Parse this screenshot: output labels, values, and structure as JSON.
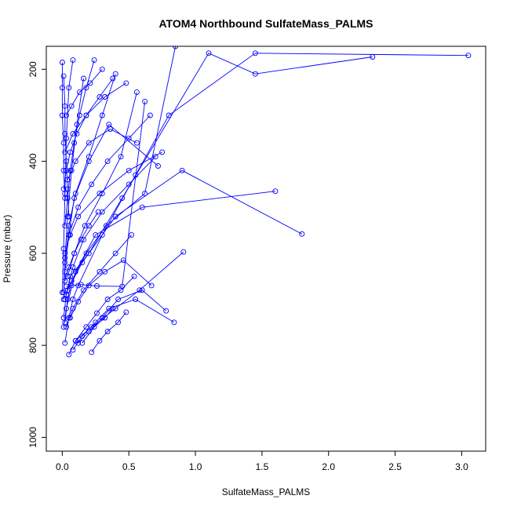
{
  "chart_data": {
    "type": "line",
    "title": "ATOM4 Northbound SulfateMass_PALMS",
    "xlabel": "SulfateMass_PALMS",
    "ylabel": "Pressure (mbar)",
    "xlim": [
      -0.12,
      3.18
    ],
    "ylim": [
      1030,
      150
    ],
    "y_inverted": true,
    "grid": false,
    "x_ticks": [
      "0.0",
      "0.5",
      "1.0",
      "1.5",
      "2.0",
      "2.5",
      "3.0"
    ],
    "x_tick_values": [
      0,
      0.5,
      1.0,
      1.5,
      2.0,
      2.5,
      3.0
    ],
    "y_ticks": [
      "200",
      "400",
      "600",
      "800",
      "1000"
    ],
    "y_tick_values": [
      200,
      400,
      600,
      800,
      1000
    ],
    "series_color": "#0000ff",
    "marker": "open-circle",
    "series": [
      {
        "x": [
          0.02,
          0.05,
          0.08,
          0.12,
          0.3,
          0.55,
          0.8,
          1.45,
          3.05
        ],
        "y": [
          795,
          740,
          700,
          670,
          560,
          430,
          300,
          165,
          170
        ]
      },
      {
        "x": [
          0.01,
          0.03,
          0.1,
          0.25,
          0.6,
          1.6
        ],
        "y": [
          760,
          720,
          640,
          560,
          500,
          465
        ]
      },
      {
        "x": [
          0.02,
          0.04,
          0.15,
          0.4,
          0.9,
          1.8
        ],
        "y": [
          700,
          680,
          620,
          520,
          420,
          558
        ]
      },
      {
        "x": [
          0.03,
          0.06,
          0.2,
          0.45,
          1.1,
          1.45,
          2.33
        ],
        "y": [
          690,
          650,
          600,
          480,
          165,
          210,
          173
        ]
      },
      {
        "x": [
          0.01,
          0.02,
          0.05,
          0.09,
          0.2,
          0.35,
          0.72
        ],
        "y": [
          685,
          640,
          560,
          480,
          400,
          320,
          410
        ]
      },
      {
        "x": [
          0.02,
          0.04,
          0.07,
          0.18,
          0.33,
          0.62,
          0.85
        ],
        "y": [
          750,
          700,
          660,
          600,
          540,
          470,
          150
        ]
      },
      {
        "x": [
          0.05,
          0.1,
          0.22,
          0.4,
          0.58,
          0.91
        ],
        "y": [
          820,
          790,
          760,
          720,
          680,
          597
        ]
      },
      {
        "x": [
          0.08,
          0.15,
          0.25,
          0.35,
          0.55,
          0.84
        ],
        "y": [
          810,
          780,
          750,
          720,
          700,
          750
        ]
      },
      {
        "x": [
          0.12,
          0.2,
          0.3,
          0.42,
          0.6,
          0.78
        ],
        "y": [
          795,
          770,
          740,
          700,
          680,
          725
        ]
      },
      {
        "x": [
          0.02,
          0.06,
          0.12,
          0.28,
          0.5,
          0.75
        ],
        "y": [
          600,
          560,
          520,
          470,
          420,
          380
        ]
      },
      {
        "x": [
          0.01,
          0.03,
          0.08,
          0.16,
          0.3,
          0.5,
          0.7
        ],
        "y": [
          740,
          690,
          630,
          570,
          510,
          450,
          390
        ]
      },
      {
        "x": [
          0.03,
          0.07,
          0.14,
          0.26,
          0.45,
          0.62
        ],
        "y": [
          672,
          670,
          668,
          671,
          672,
          270
        ]
      },
      {
        "x": [
          0.04,
          0.09,
          0.17,
          0.3,
          0.44,
          0.56
        ],
        "y": [
          650,
          600,
          540,
          470,
          390,
          250
        ]
      },
      {
        "x": [
          0.02,
          0.05,
          0.1,
          0.2,
          0.3,
          0.4
        ],
        "y": [
          620,
          540,
          470,
          390,
          300,
          210
        ]
      },
      {
        "x": [
          0.01,
          0.02,
          0.04,
          0.07,
          0.11,
          0.16
        ],
        "y": [
          700,
          610,
          520,
          420,
          320,
          220
        ]
      },
      {
        "x": [
          0.0,
          0.01,
          0.02,
          0.03,
          0.05,
          0.08
        ],
        "y": [
          685,
          590,
          470,
          350,
          240,
          180
        ]
      },
      {
        "x": [
          0.03,
          0.08,
          0.16,
          0.28,
          0.4,
          0.52
        ],
        "y": [
          760,
          720,
          680,
          640,
          600,
          560
        ]
      },
      {
        "x": [
          0.06,
          0.12,
          0.2,
          0.32,
          0.46,
          0.67
        ],
        "y": [
          740,
          705,
          670,
          640,
          615,
          670
        ]
      },
      {
        "x": [
          0.1,
          0.18,
          0.26,
          0.34,
          0.44,
          0.54
        ],
        "y": [
          790,
          760,
          730,
          700,
          680,
          650
        ]
      },
      {
        "x": [
          0.02,
          0.04,
          0.06,
          0.09,
          0.13,
          0.18,
          0.24
        ],
        "y": [
          540,
          480,
          420,
          360,
          300,
          240,
          180
        ]
      },
      {
        "x": [
          0.01,
          0.03,
          0.06,
          0.11,
          0.18,
          0.28,
          0.38
        ],
        "y": [
          460,
          420,
          380,
          340,
          300,
          260,
          220
        ]
      },
      {
        "x": [
          0.05,
          0.12,
          0.22,
          0.34,
          0.5,
          0.66
        ],
        "y": [
          560,
          500,
          450,
          400,
          350,
          300
        ]
      },
      {
        "x": [
          0.02,
          0.08,
          0.18,
          0.32,
          0.48
        ],
        "y": [
          380,
          340,
          300,
          260,
          230
        ]
      },
      {
        "x": [
          0.04,
          0.1,
          0.2,
          0.36,
          0.56
        ],
        "y": [
          440,
          400,
          360,
          330,
          360
        ]
      },
      {
        "x": [
          0.03,
          0.07,
          0.13,
          0.21,
          0.3
        ],
        "y": [
          300,
          280,
          250,
          230,
          200
        ]
      },
      {
        "x": [
          0.02,
          0.05,
          0.09,
          0.14,
          0.2,
          0.27
        ],
        "y": [
          660,
          630,
          600,
          570,
          540,
          510
        ]
      },
      {
        "x": [
          0.15,
          0.24,
          0.32,
          0.38
        ],
        "y": [
          795,
          760,
          740,
          720
        ]
      },
      {
        "x": [
          0.22,
          0.28,
          0.34,
          0.42,
          0.48
        ],
        "y": [
          815,
          790,
          770,
          750,
          728
        ]
      },
      {
        "x": [
          0.0,
          0.0,
          0.0,
          0.01,
          0.01,
          0.02
        ],
        "y": [
          185,
          240,
          300,
          360,
          420,
          480
        ]
      },
      {
        "x": [
          0.01,
          0.02,
          0.02,
          0.03,
          0.04,
          0.05
        ],
        "y": [
          215,
          280,
          340,
          400,
          460,
          520
        ]
      }
    ]
  }
}
